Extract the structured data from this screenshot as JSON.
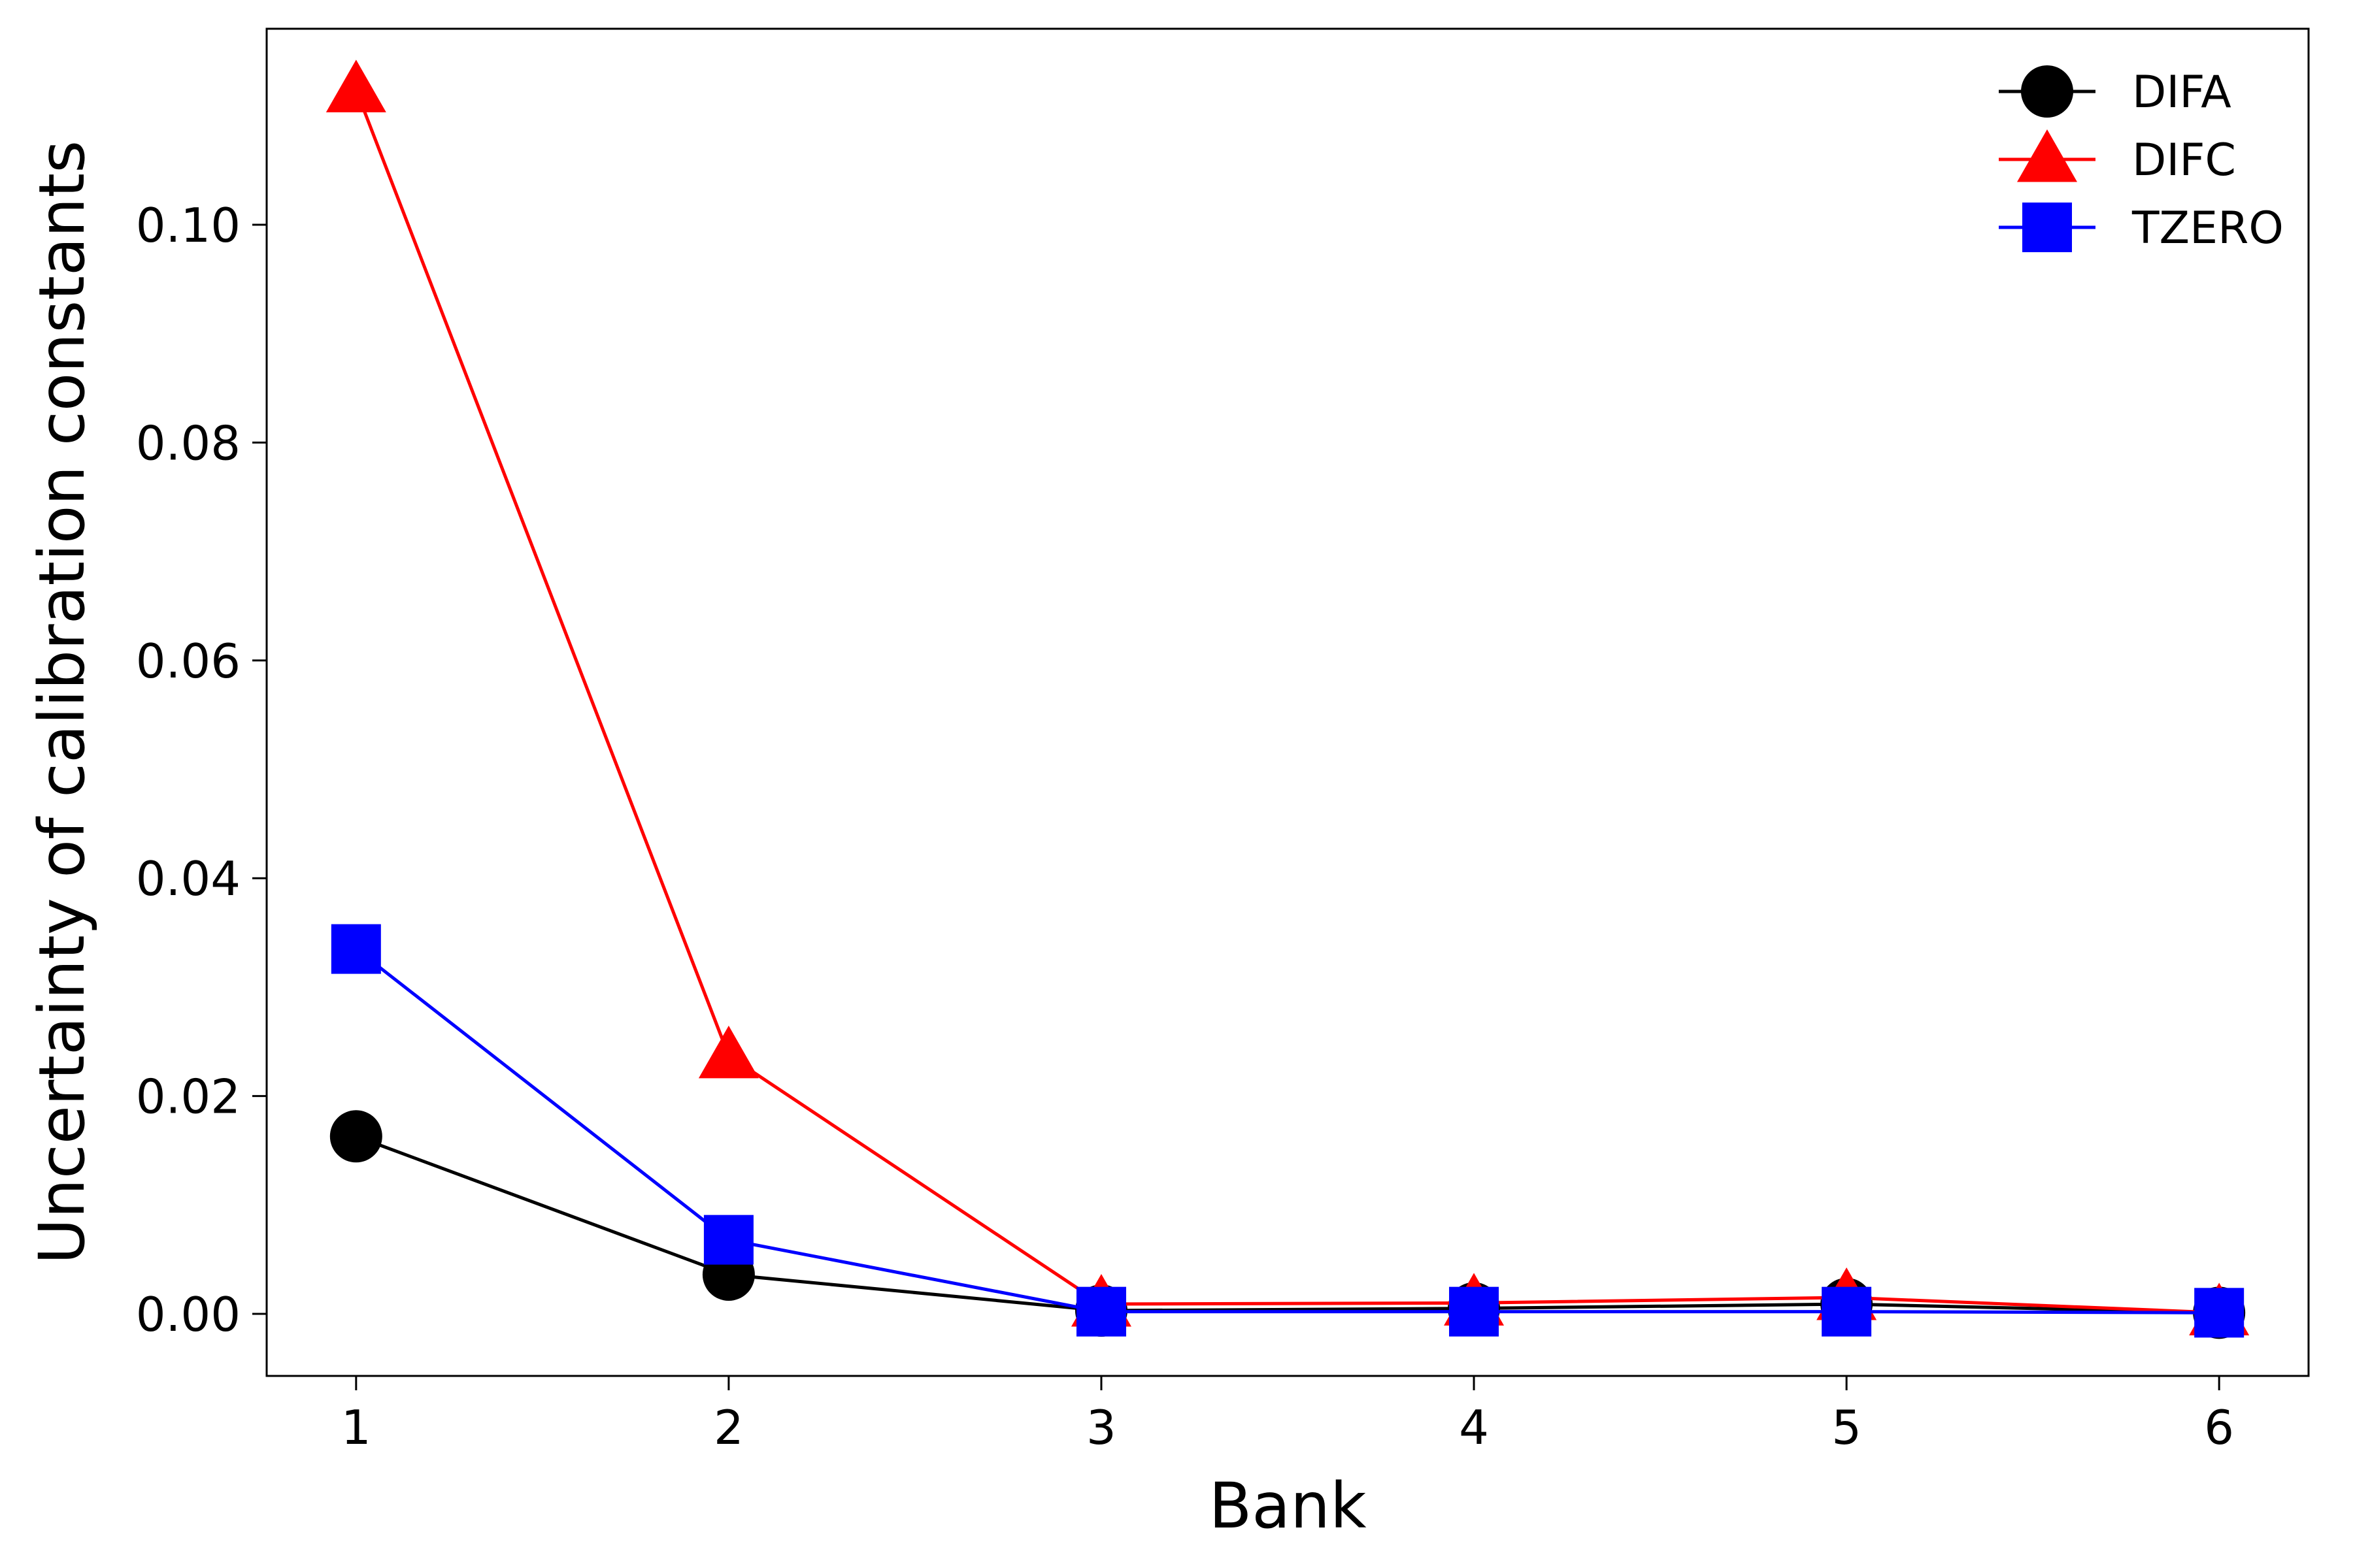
{
  "chart_data": {
    "type": "line",
    "title": "",
    "xlabel": "Bank",
    "ylabel": "Uncertainty of calibration constants",
    "x": [
      1,
      2,
      3,
      4,
      5,
      6
    ],
    "xticks": [
      "1",
      "2",
      "3",
      "4",
      "5",
      "6"
    ],
    "yticks": [
      "0.00",
      "0.02",
      "0.04",
      "0.06",
      "0.08",
      "0.10"
    ],
    "xlim": [
      0.76,
      6.24
    ],
    "ylim": [
      -0.0057,
      0.118
    ],
    "grid": false,
    "legend_position": "top-right",
    "series": [
      {
        "name": "DIFA",
        "marker": "circle",
        "color": "#000000",
        "values": [
          0.0163,
          0.0036,
          0.0003,
          0.0005,
          0.0009,
          0.0001
        ]
      },
      {
        "name": "DIFC",
        "marker": "triangle",
        "color": "#ff0000",
        "values": [
          0.1124,
          0.0237,
          0.0009,
          0.001,
          0.0015,
          0.0001
        ]
      },
      {
        "name": "TZERO",
        "marker": "square",
        "color": "#0000ff",
        "values": [
          0.0335,
          0.0068,
          0.0002,
          0.0002,
          0.0002,
          0.0001
        ]
      }
    ]
  }
}
